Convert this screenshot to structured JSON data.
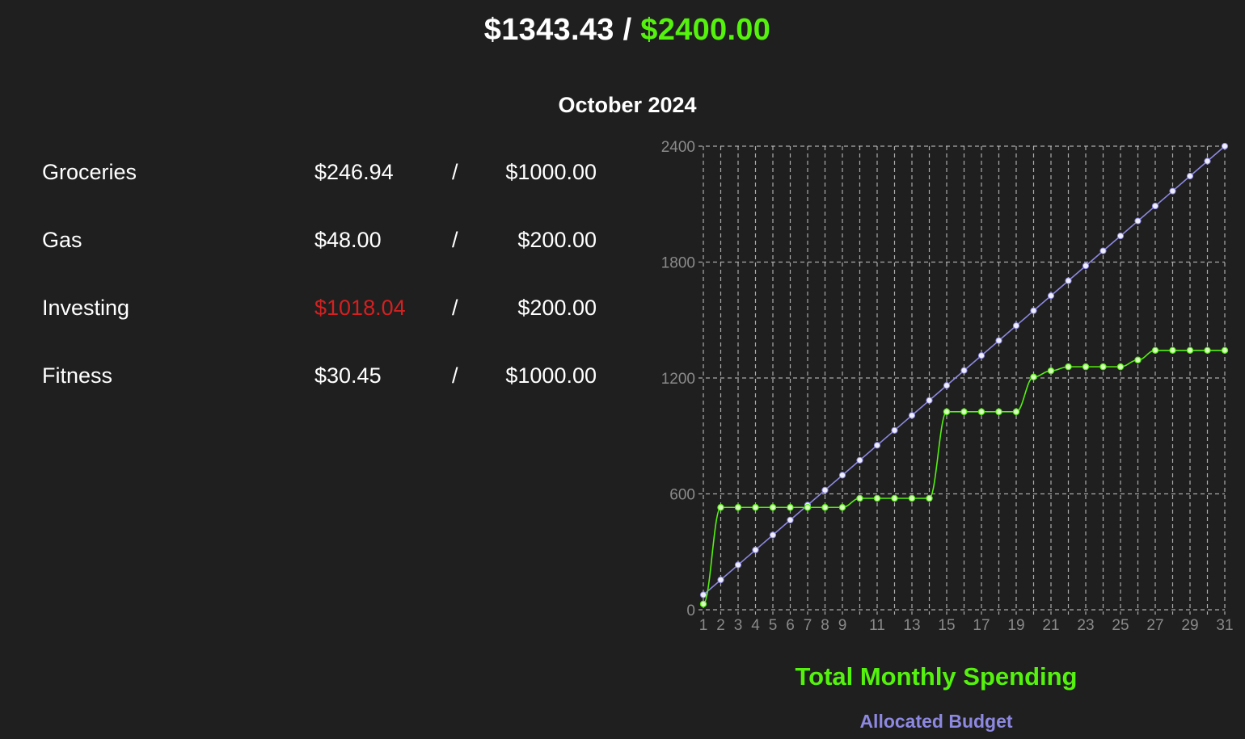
{
  "header": {
    "total_spent": "$1343.43",
    "separator": "/",
    "total_budget": "$2400.00"
  },
  "month_title": "October 2024",
  "categories": [
    {
      "name": "Groceries",
      "spent": "$246.94",
      "slash": "/",
      "budget": "$1000.00",
      "over_budget": false
    },
    {
      "name": "Gas",
      "spent": "$48.00",
      "slash": "/",
      "budget": "$200.00",
      "over_budget": false
    },
    {
      "name": "Investing",
      "spent": "$1018.04",
      "slash": "/",
      "budget": "$200.00",
      "over_budget": true
    },
    {
      "name": "Fitness",
      "spent": "$30.45",
      "slash": "/",
      "budget": "$1000.00",
      "over_budget": false
    }
  ],
  "colors": {
    "background": "#1f1f1f",
    "text": "#ffffff",
    "accent_green": "#55f20e",
    "over_budget_red": "#d42020",
    "budget_line": "#8d88e0",
    "budget_marker": "#eeeeff",
    "grid": "#cfcfcf",
    "tick_label": "#8a8a8a"
  },
  "chart_data": {
    "type": "line",
    "title": "",
    "xlabel": "",
    "ylabel": "",
    "x": [
      1,
      2,
      3,
      4,
      5,
      6,
      7,
      8,
      9,
      10,
      11,
      12,
      13,
      14,
      15,
      16,
      17,
      18,
      19,
      20,
      21,
      22,
      23,
      24,
      25,
      26,
      27,
      28,
      29,
      30,
      31
    ],
    "x_tick_labels": [
      "1",
      "2",
      "3",
      "4",
      "5",
      "6",
      "7",
      "8",
      "9",
      "11",
      "13",
      "15",
      "17",
      "19",
      "21",
      "23",
      "25",
      "27",
      "29",
      "31"
    ],
    "y_tick_labels": [
      "0",
      "600",
      "1200",
      "1800",
      "2400"
    ],
    "xlim": [
      1,
      31
    ],
    "ylim": [
      0,
      2400
    ],
    "y_ticks": [
      0,
      600,
      1200,
      1800,
      2400
    ],
    "grid": true,
    "legend_position": "bottom",
    "series": [
      {
        "name": "Total Monthly Spending",
        "color": "#55f20e",
        "values": [
          30,
          530,
          530,
          530,
          530,
          530,
          530,
          530,
          530,
          577,
          577,
          577,
          577,
          577,
          1025,
          1025,
          1025,
          1025,
          1025,
          1205,
          1237,
          1258,
          1258,
          1258,
          1258,
          1293,
          1343,
          1343,
          1343,
          1343,
          1343
        ]
      },
      {
        "name": "Allocated Budget",
        "color": "#8d88e0",
        "values": [
          77.42,
          154.84,
          232.26,
          309.68,
          387.1,
          464.52,
          541.94,
          619.35,
          696.77,
          774.19,
          851.61,
          929.03,
          1006.45,
          1083.87,
          1161.29,
          1238.71,
          1316.13,
          1393.55,
          1470.97,
          1548.39,
          1625.81,
          1703.23,
          1780.65,
          1858.06,
          1935.48,
          2012.9,
          2090.32,
          2167.74,
          2245.16,
          2322.58,
          2400.0
        ]
      }
    ]
  }
}
